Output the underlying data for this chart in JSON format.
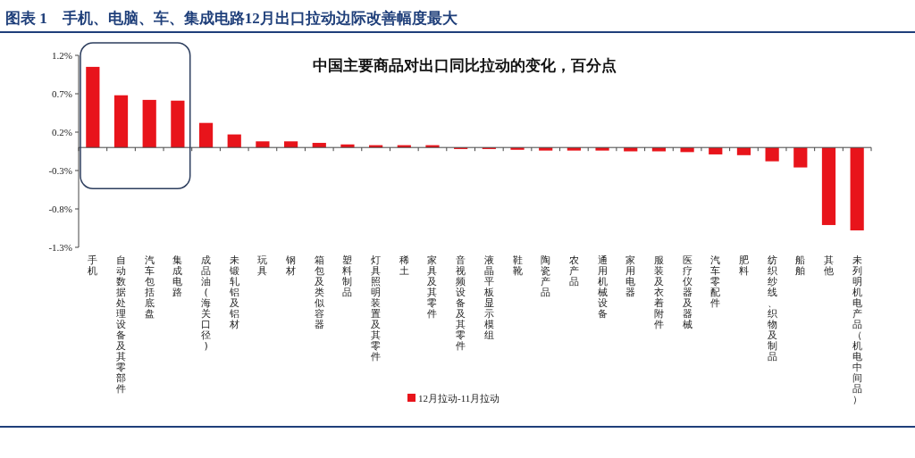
{
  "chart_data": {
    "type": "bar",
    "title": "图表 1　手机、电脑、车、集成电路12月出口拉动边际改善幅度最大",
    "subtitle": "中国主要商品对出口同比拉动的变化，百分点",
    "categories": [
      "手机",
      "自动数据处理设备及其零部件",
      "汽车包括底盘",
      "集成电路",
      "成品油(海关口径)",
      "未锻轧铝及铝材",
      "玩具",
      "钢材",
      "箱包及类似容器",
      "塑料制品",
      "灯具照明装置及其零件",
      "稀土",
      "家具及其零件",
      "音视频设备及其零件",
      "液晶平板显示模组",
      "鞋靴",
      "陶瓷产品",
      "农产品",
      "通用机械设备",
      "家用电器",
      "服装及衣着附件",
      "医疗仪器及器械",
      "汽车零配件",
      "肥料",
      "纺织纱线、织物及制品",
      "船舶",
      "其他",
      "未列明机电产品（机电中间品）"
    ],
    "series": [
      {
        "name": "12月拉动-11月拉动",
        "color": "#e8141b",
        "values": [
          1.05,
          0.68,
          0.62,
          0.61,
          0.32,
          0.17,
          0.08,
          0.08,
          0.06,
          0.04,
          0.03,
          0.03,
          0.03,
          -0.02,
          -0.02,
          -0.03,
          -0.04,
          -0.04,
          -0.04,
          -0.05,
          -0.05,
          -0.06,
          -0.09,
          -0.1,
          -0.18,
          -0.26,
          -1.01,
          -1.08
        ]
      }
    ],
    "ylim": [
      -1.3,
      1.2
    ],
    "yticks": [
      {
        "value": 1.2,
        "label": "1.2%"
      },
      {
        "value": 0.7,
        "label": "0.7%"
      },
      {
        "value": 0.2,
        "label": "0.2%"
      },
      {
        "value": -0.3,
        "label": "-0.3%"
      },
      {
        "value": -0.8,
        "label": "-0.8%"
      },
      {
        "value": -1.3,
        "label": "-1.3%"
      }
    ],
    "legend": "bottom"
  }
}
